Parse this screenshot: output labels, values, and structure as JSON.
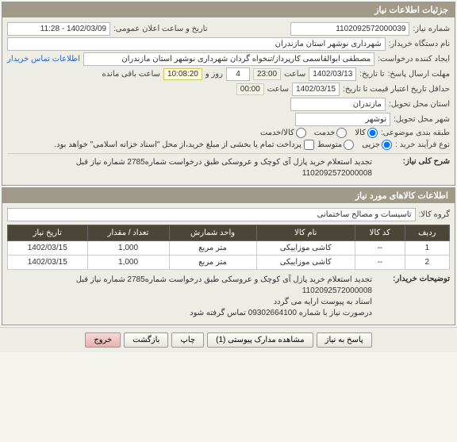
{
  "header": {
    "title": "جزئیات اطلاعات نیاز"
  },
  "fields": {
    "need_no_label": "شماره نیاز:",
    "need_no": "1102092572000039",
    "announce_label": "تاریخ و ساعت اعلان عمومی:",
    "announce_value": "1402/03/09 - 11:28",
    "buyer_label": "نام دستگاه خریدار:",
    "buyer_value": "شهرداری نوشهر استان مازندران",
    "creator_label": "ایجاد کننده درخواست:",
    "creator_value": "مصطفی  ابوالقاسمی کارپرداز/تنخواه گردان شهرداری نوشهر استان مازندران",
    "contact_link": "اطلاعات تماس خریدار",
    "reply_deadline_label": "مهلت ارسال پاسخ:",
    "reply_deadline_until": "تا تاریخ:",
    "reply_date": "1402/03/13",
    "time_label": "ساعت",
    "reply_time": "23:00",
    "days_count": "4",
    "days_and": "روز و",
    "remaining_time": "10:08:20",
    "remaining_label": "ساعت باقی مانده",
    "valid_until_label": "حداقل تاریخ اعتبار قیمت تا تاریخ:",
    "valid_date": "1402/03/15",
    "valid_time": "00:00",
    "province_label": "استان محل تحویل:",
    "province": "مازندران",
    "city_label": "شهر محل تحویل:",
    "city": "نوشهر",
    "category_label": "طبقه بندی موضوعی:",
    "cat_goods": "کالا",
    "cat_service": "خدمت",
    "cat_goods_service": "کالا/خدمت",
    "process_label": "نوع فرآیند خرید :",
    "proc_partial": "جزیی",
    "proc_medium": "متوسط",
    "payment_note": "پرداخت تمام یا بخشی از مبلغ خرید،از محل \"اسناد خزانه اسلامی\" خواهد بود.",
    "desc_label": "شرح کلی نیاز:",
    "desc_text": "تجدید استعلام خرید پازل آی کوچک و عروسکی طبق درخواست شماره2785 شماره نیاز قبل 1102092572000008",
    "goods_header": "اطلاعات کالاهای مورد نیاز",
    "goods_group_label": "گروه کالا:",
    "goods_group": "تاسیسات و مصالح ساختمانی",
    "buyer_desc_label": "توضیحات خریدار:",
    "buyer_desc_line1": "تجدید استعلام خرید پازل آی کوچک و عروسکی طبق درخواست شماره2785 شماره نیاز قبل 1102092572000008",
    "buyer_desc_line2": "اسناد به پیوست ارایه می گردد",
    "buyer_desc_line3": "درصورت نیاز با شماره 09302664100 تماس گرفته شود"
  },
  "table": {
    "cols": [
      "ردیف",
      "کد کالا",
      "نام کالا",
      "واحد شمارش",
      "تعداد / مقدار",
      "تاریخ نیاز"
    ],
    "rows": [
      [
        "1",
        "--",
        "کاشی موزاییکی",
        "متر مربع",
        "1,000",
        "1402/03/15"
      ],
      [
        "2",
        "--",
        "کاشی موزاییکی",
        "متر مربع",
        "1,000",
        "1402/03/15"
      ]
    ]
  },
  "buttons": {
    "reply": "پاسخ به نیاز",
    "attachments": "مشاهده مدارک پیوستی (1)",
    "print": "چاپ",
    "back": "بازگشت",
    "exit": "خروج"
  }
}
